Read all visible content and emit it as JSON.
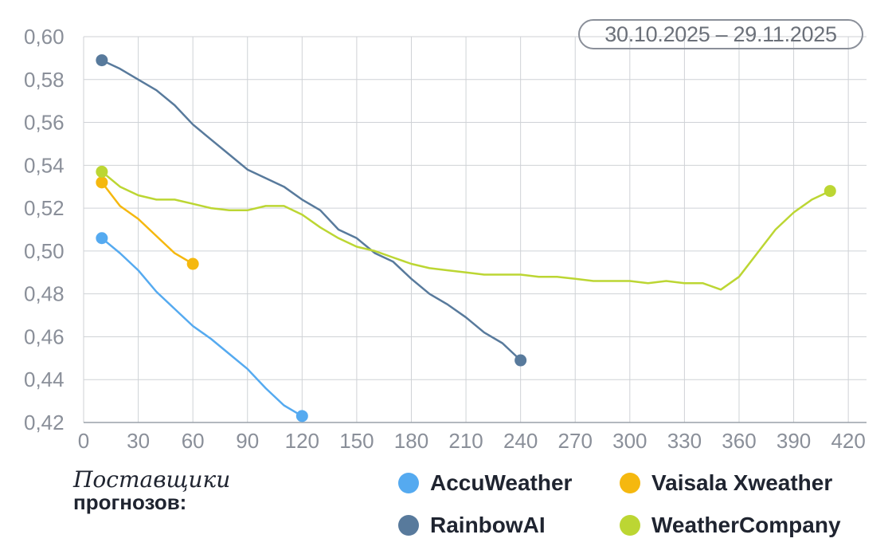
{
  "date_range": "30.10.2025 – 29.11.2025",
  "legend": {
    "title_line1": "Поставщики",
    "title_line2": "прогнозов:",
    "items": [
      {
        "name": "AccuWeather",
        "color": "#55aaf0"
      },
      {
        "name": "Vaisala Xweather",
        "color": "#f5b80f"
      },
      {
        "name": "RainbowAI",
        "color": "#587a9c"
      },
      {
        "name": "WeatherCompany",
        "color": "#bcd633"
      }
    ]
  },
  "chart_data": {
    "type": "line",
    "xlim": [
      0,
      430
    ],
    "ylim": [
      0.42,
      0.6
    ],
    "xticks": [
      0,
      30,
      60,
      90,
      120,
      150,
      180,
      210,
      240,
      270,
      300,
      330,
      360,
      390,
      420
    ],
    "xtick_labels": [
      "0",
      "30",
      "60",
      "90",
      "120",
      "150",
      "180",
      "210",
      "240",
      "270",
      "300",
      "330",
      "360",
      "390",
      "420"
    ],
    "yticks": [
      0.42,
      0.44,
      0.46,
      0.48,
      0.5,
      0.52,
      0.54,
      0.56,
      0.58,
      0.6
    ],
    "ytick_labels": [
      "0,42",
      "0,44",
      "0,46",
      "0,48",
      "0,50",
      "0,52",
      "0,54",
      "0,56",
      "0,58",
      "0,60"
    ],
    "grid": true,
    "series": [
      {
        "name": "AccuWeather",
        "color": "#55aaf0",
        "x": [
          10,
          20,
          30,
          40,
          50,
          60,
          70,
          80,
          90,
          100,
          110,
          120
        ],
        "y": [
          0.506,
          0.499,
          0.491,
          0.481,
          0.473,
          0.465,
          0.459,
          0.452,
          0.445,
          0.436,
          0.428,
          0.423
        ]
      },
      {
        "name": "Vaisala Xweather",
        "color": "#f5b80f",
        "x": [
          10,
          20,
          30,
          40,
          50,
          60
        ],
        "y": [
          0.532,
          0.521,
          0.515,
          0.507,
          0.499,
          0.494
        ]
      },
      {
        "name": "RainbowAI",
        "color": "#587a9c",
        "x": [
          10,
          20,
          30,
          40,
          50,
          60,
          70,
          80,
          90,
          100,
          110,
          120,
          130,
          140,
          150,
          160,
          170,
          180,
          190,
          200,
          210,
          220,
          230,
          240
        ],
        "y": [
          0.589,
          0.585,
          0.58,
          0.575,
          0.568,
          0.559,
          0.552,
          0.545,
          0.538,
          0.534,
          0.53,
          0.524,
          0.519,
          0.51,
          0.506,
          0.499,
          0.495,
          0.487,
          0.48,
          0.475,
          0.469,
          0.462,
          0.457,
          0.449
        ]
      },
      {
        "name": "WeatherCompany",
        "color": "#bcd633",
        "x": [
          10,
          20,
          30,
          40,
          50,
          60,
          70,
          80,
          90,
          100,
          110,
          120,
          130,
          140,
          150,
          160,
          170,
          180,
          190,
          200,
          210,
          220,
          230,
          240,
          250,
          260,
          270,
          280,
          290,
          300,
          310,
          320,
          330,
          340,
          350,
          360,
          370,
          380,
          390,
          400,
          410
        ],
        "y": [
          0.537,
          0.53,
          0.526,
          0.524,
          0.524,
          0.522,
          0.52,
          0.519,
          0.519,
          0.521,
          0.521,
          0.517,
          0.511,
          0.506,
          0.502,
          0.5,
          0.497,
          0.494,
          0.492,
          0.491,
          0.49,
          0.489,
          0.489,
          0.489,
          0.488,
          0.488,
          0.487,
          0.486,
          0.486,
          0.486,
          0.485,
          0.486,
          0.485,
          0.485,
          0.482,
          0.488,
          0.499,
          0.51,
          0.518,
          0.524,
          0.528
        ]
      }
    ]
  }
}
